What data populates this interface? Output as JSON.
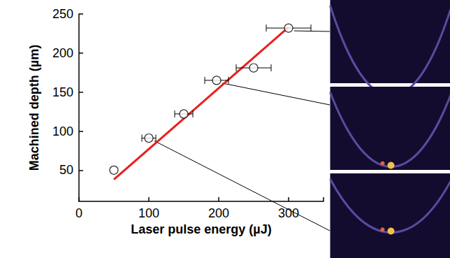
{
  "chart_data": {
    "type": "scatter",
    "x_label": "Laser pulse energy (µJ)",
    "y_label": "Machined depth (µm)",
    "xlim": [
      0,
      350
    ],
    "xticks": [
      0,
      100,
      200,
      300
    ],
    "ylim": [
      10,
      250
    ],
    "yticks": [
      50,
      100,
      150,
      200,
      250
    ],
    "grid": false,
    "series": [
      {
        "type": "scatter",
        "marker": "circle",
        "color": "#000000",
        "x": [
          50,
          100,
          150,
          197,
          250,
          300
        ],
        "values": [
          50,
          91,
          122,
          165,
          181,
          232
        ],
        "x_error": [
          0,
          10,
          13,
          17,
          25,
          32
        ]
      },
      {
        "type": "line",
        "line_style": "solid",
        "color": "#e8201c",
        "x": [
          50,
          300
        ],
        "values": [
          38,
          233
        ]
      }
    ]
  }
}
